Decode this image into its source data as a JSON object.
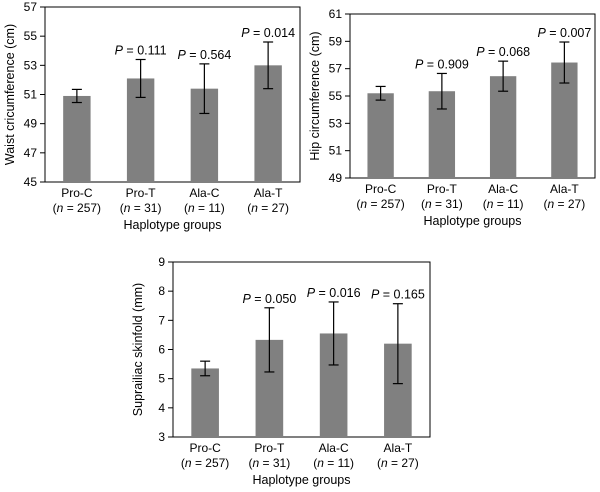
{
  "chart_data": [
    {
      "type": "bar",
      "categories": [
        "Pro-C",
        "Pro-T",
        "Ala-C",
        "Ala-T"
      ],
      "n_labels": [
        "(n = 257)",
        "(n = 31)",
        "(n = 11)",
        "(n = 27)"
      ],
      "values": [
        50.9,
        52.1,
        51.4,
        53.0
      ],
      "errors": [
        0.45,
        1.3,
        1.7,
        1.6
      ],
      "annotations": [
        "",
        "P = 0.111",
        "P = 0.564",
        "P = 0.014"
      ],
      "xlabel": "Haplotype groups",
      "ylabel": "Waist cricumference (cm)",
      "ylim": [
        45,
        57
      ],
      "yticks": [
        45,
        47,
        49,
        51,
        53,
        55,
        57
      ],
      "bar_color": "#808080"
    },
    {
      "type": "bar",
      "categories": [
        "Pro-C",
        "Pro-T",
        "Ala-C",
        "Ala-T"
      ],
      "n_labels": [
        "(n = 257)",
        "(n = 31)",
        "(n = 11)",
        "(n = 27)"
      ],
      "values": [
        55.2,
        55.35,
        56.45,
        57.45
      ],
      "errors": [
        0.5,
        1.3,
        1.1,
        1.5
      ],
      "annotations": [
        "",
        "P = 0.909",
        "P = 0.068",
        "P = 0.007"
      ],
      "xlabel": "Haplotype groups",
      "ylabel": "Hip circumference (cm)",
      "ylim": [
        49,
        61
      ],
      "yticks": [
        49,
        51,
        53,
        55,
        57,
        59,
        61
      ],
      "bar_color": "#808080"
    },
    {
      "type": "bar",
      "categories": [
        "Pro-C",
        "Pro-T",
        "Ala-C",
        "Ala-T"
      ],
      "n_labels": [
        "(n = 257)",
        "(n = 31)",
        "(n = 11)",
        "(n = 27)"
      ],
      "values": [
        5.35,
        6.33,
        6.55,
        6.2
      ],
      "errors": [
        0.25,
        1.1,
        1.08,
        1.37
      ],
      "annotations": [
        "",
        "P = 0.050",
        "P = 0.016",
        "P = 0.165"
      ],
      "xlabel": "Haplotype groups",
      "ylabel": "Suprailiac skinfold (mm)",
      "ylim": [
        3,
        9
      ],
      "yticks": [
        3,
        4,
        5,
        6,
        7,
        8,
        9
      ],
      "bar_color": "#808080"
    }
  ]
}
